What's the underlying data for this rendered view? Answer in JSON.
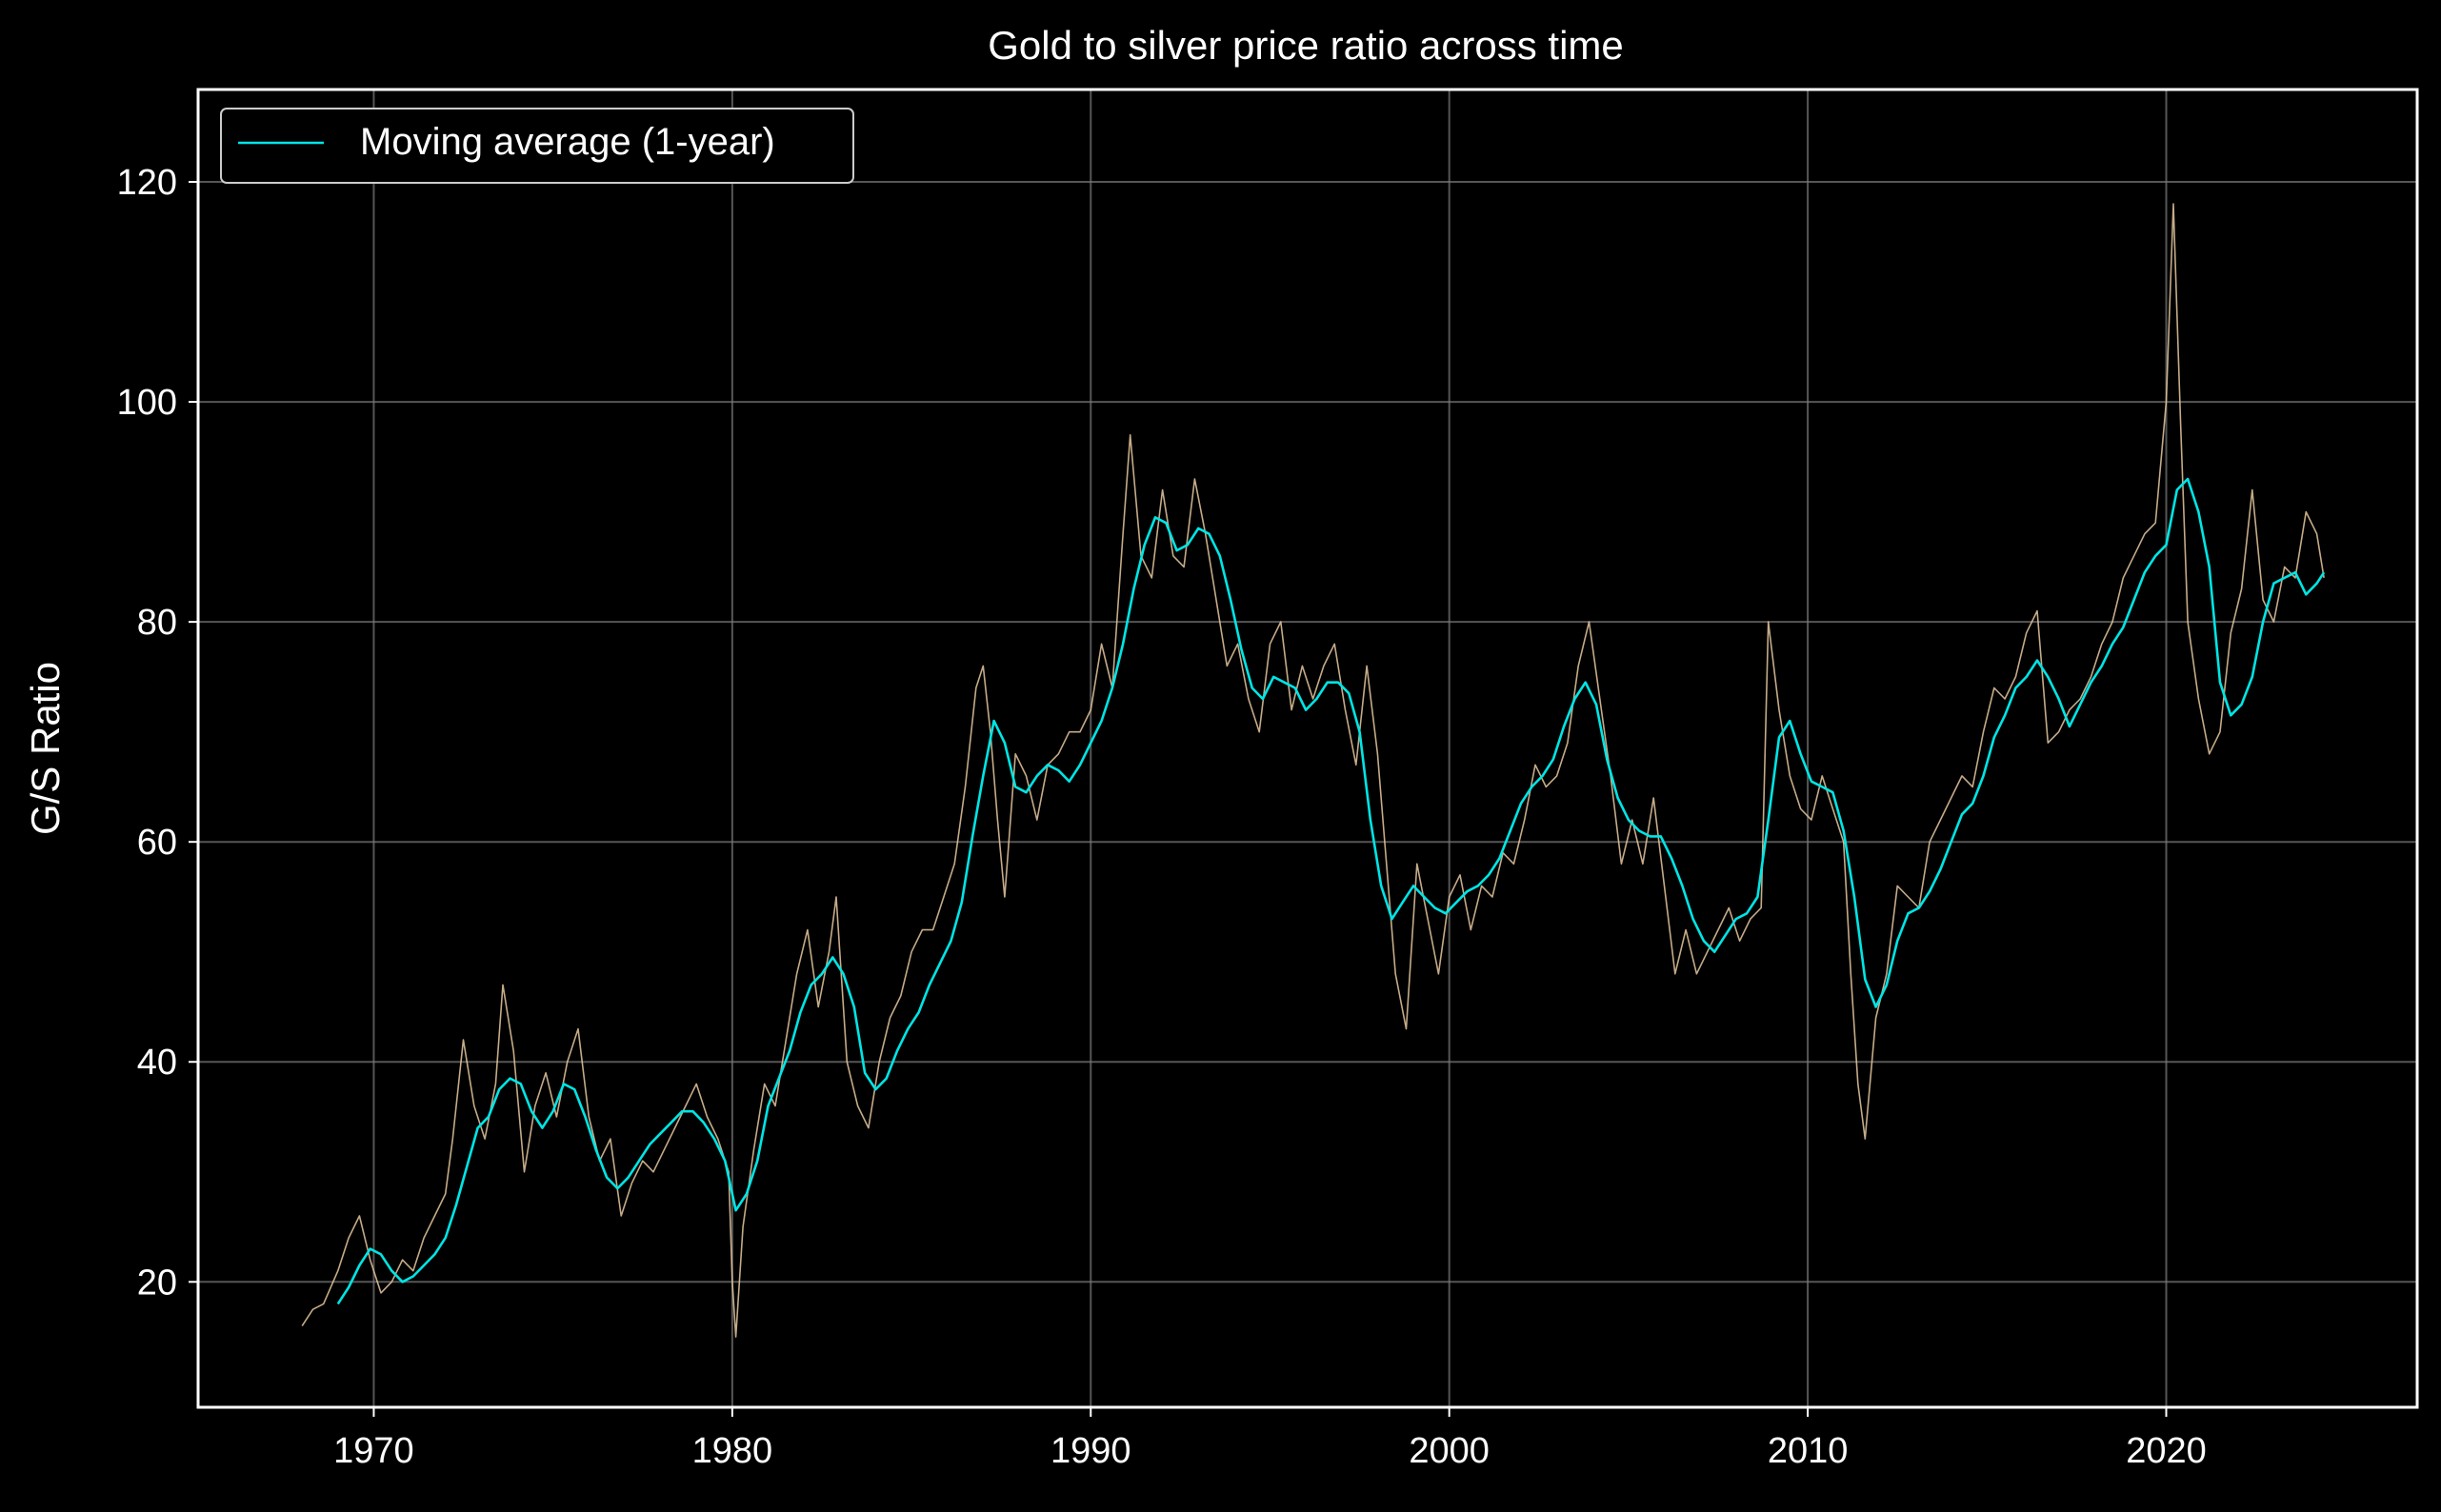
{
  "chart_data": {
    "type": "line",
    "title": "Gold to silver price ratio across time",
    "xlabel": "",
    "ylabel": "G/S Ratio",
    "xlim": [
      1965.1,
      2027.0
    ],
    "ylim": [
      8.6,
      128.4
    ],
    "xticks": [
      1970,
      1980,
      1990,
      2000,
      2010,
      2020
    ],
    "yticks": [
      20,
      40,
      60,
      80,
      100,
      120
    ],
    "grid": true,
    "legend": {
      "position": "top-left",
      "entries": [
        "Moving average (1-year)"
      ]
    },
    "colors": {
      "background": "#000000",
      "raw_series": "#e8c9a0",
      "moving_average": "#00e5e5",
      "grid": "#7a7a7a",
      "text": "#ffffff"
    },
    "series": [
      {
        "role": "daily ratio",
        "style": "thin",
        "x": [
          1968.0,
          1968.3,
          1968.6,
          1969.0,
          1969.3,
          1969.6,
          1969.9,
          1970.2,
          1970.5,
          1970.8,
          1971.1,
          1971.4,
          1971.7,
          1972.0,
          1972.2,
          1972.5,
          1972.8,
          1973.1,
          1973.4,
          1973.6,
          1973.9,
          1974.2,
          1974.5,
          1974.8,
          1975.1,
          1975.4,
          1975.7,
          1976.0,
          1976.3,
          1976.6,
          1976.9,
          1977.2,
          1977.5,
          1977.8,
          1978.1,
          1978.4,
          1978.7,
          1979.0,
          1979.3,
          1979.6,
          1979.9,
          1980.0,
          1980.1,
          1980.3,
          1980.6,
          1980.9,
          1981.2,
          1981.5,
          1981.8,
          1982.1,
          1982.4,
          1982.7,
          1982.9,
          1983.2,
          1983.5,
          1983.8,
          1984.1,
          1984.4,
          1984.7,
          1985.0,
          1985.3,
          1985.6,
          1985.9,
          1986.2,
          1986.5,
          1986.8,
          1987.0,
          1987.2,
          1987.4,
          1987.6,
          1987.9,
          1988.2,
          1988.5,
          1988.8,
          1989.1,
          1989.4,
          1989.7,
          1990.0,
          1990.3,
          1990.6,
          1990.9,
          1991.1,
          1991.4,
          1991.7,
          1992.0,
          1992.3,
          1992.6,
          1992.9,
          1993.2,
          1993.5,
          1993.8,
          1994.1,
          1994.4,
          1994.7,
          1995.0,
          1995.3,
          1995.6,
          1995.9,
          1996.2,
          1996.5,
          1996.8,
          1997.1,
          1997.4,
          1997.7,
          1998.0,
          1998.2,
          1998.5,
          1998.8,
          1999.1,
          1999.4,
          1999.7,
          2000.0,
          2000.3,
          2000.6,
          2000.9,
          2001.2,
          2001.5,
          2001.8,
          2002.1,
          2002.4,
          2002.7,
          2003.0,
          2003.3,
          2003.6,
          2003.9,
          2004.2,
          2004.5,
          2004.8,
          2005.1,
          2005.4,
          2005.7,
          2006.0,
          2006.3,
          2006.6,
          2006.9,
          2007.2,
          2007.5,
          2007.8,
          2008.1,
          2008.4,
          2008.7,
          2008.9,
          2009.2,
          2009.5,
          2009.8,
          2010.1,
          2010.4,
          2010.7,
          2011.0,
          2011.2,
          2011.4,
          2011.6,
          2011.9,
          2012.2,
          2012.5,
          2012.8,
          2013.1,
          2013.4,
          2013.7,
          2014.0,
          2014.3,
          2014.6,
          2014.9,
          2015.2,
          2015.5,
          2015.8,
          2016.1,
          2016.4,
          2016.7,
          2017.0,
          2017.3,
          2017.6,
          2017.9,
          2018.2,
          2018.5,
          2018.8,
          2019.1,
          2019.4,
          2019.7,
          2020.0,
          2020.2,
          2020.4,
          2020.6,
          2020.9,
          2021.2,
          2021.5,
          2021.8,
          2022.1,
          2022.4,
          2022.7,
          2023.0,
          2023.3,
          2023.6,
          2023.9,
          2024.2,
          2024.4
        ],
        "y": [
          16.0,
          17.5,
          18.0,
          21.0,
          24.0,
          26.0,
          22.0,
          19.0,
          20.0,
          22.0,
          21.0,
          24.0,
          26.0,
          28.0,
          33.0,
          42.0,
          36.0,
          33.0,
          38.0,
          47.0,
          41.0,
          30.0,
          36.0,
          39.0,
          35.0,
          40.0,
          43.0,
          35.0,
          31.0,
          33.0,
          26.0,
          29.0,
          31.0,
          30.0,
          32.0,
          34.0,
          36.0,
          38.0,
          35.0,
          33.0,
          30.0,
          20.0,
          15.0,
          25.0,
          32.0,
          38.0,
          36.0,
          42.0,
          48.0,
          52.0,
          45.0,
          50.0,
          55.0,
          40.0,
          36.0,
          34.0,
          40.0,
          44.0,
          46.0,
          50.0,
          52.0,
          52.0,
          55.0,
          58.0,
          65.0,
          74.0,
          76.0,
          70.0,
          62.0,
          55.0,
          68.0,
          66.0,
          62.0,
          67.0,
          68.0,
          70.0,
          70.0,
          72.0,
          78.0,
          74.0,
          88.0,
          97.0,
          86.0,
          84.0,
          92.0,
          86.0,
          85.0,
          93.0,
          88.0,
          82.0,
          76.0,
          78.0,
          73.0,
          70.0,
          78.0,
          80.0,
          72.0,
          76.0,
          73.0,
          76.0,
          78.0,
          72.0,
          67.0,
          76.0,
          68.0,
          60.0,
          48.0,
          43.0,
          58.0,
          53.0,
          48.0,
          55.0,
          57.0,
          52.0,
          56.0,
          55.0,
          59.0,
          58.0,
          62.0,
          67.0,
          65.0,
          66.0,
          69.0,
          76.0,
          80.0,
          73.0,
          66.0,
          58.0,
          62.0,
          58.0,
          64.0,
          56.0,
          48.0,
          52.0,
          48.0,
          50.0,
          52.0,
          54.0,
          51.0,
          53.0,
          54.0,
          80.0,
          72.0,
          66.0,
          63.0,
          62.0,
          66.0,
          63.0,
          60.0,
          48.0,
          38.0,
          33.0,
          44.0,
          48.0,
          56.0,
          55.0,
          54.0,
          60.0,
          62.0,
          64.0,
          66.0,
          65.0,
          70.0,
          74.0,
          73.0,
          75.0,
          79.0,
          81.0,
          69.0,
          70.0,
          72.0,
          73.0,
          75.0,
          78.0,
          80.0,
          84.0,
          86.0,
          88.0,
          89.0,
          100.0,
          118.0,
          98.0,
          80.0,
          73.0,
          68.0,
          70.0,
          79.0,
          83.0,
          92.0,
          82.0,
          80.0,
          85.0,
          84.0,
          90.0,
          88.0,
          84.0
        ]
      },
      {
        "name": "Moving average (1-year)",
        "x": [
          1969.0,
          1969.3,
          1969.6,
          1969.9,
          1970.2,
          1970.5,
          1970.8,
          1971.1,
          1971.4,
          1971.7,
          1972.0,
          1972.3,
          1972.6,
          1972.9,
          1973.2,
          1973.5,
          1973.8,
          1974.1,
          1974.4,
          1974.7,
          1975.0,
          1975.3,
          1975.6,
          1975.9,
          1976.2,
          1976.5,
          1976.8,
          1977.1,
          1977.4,
          1977.7,
          1978.0,
          1978.3,
          1978.6,
          1978.9,
          1979.2,
          1979.5,
          1979.8,
          1980.1,
          1980.4,
          1980.7,
          1981.0,
          1981.3,
          1981.6,
          1981.9,
          1982.2,
          1982.5,
          1982.8,
          1983.1,
          1983.4,
          1983.7,
          1984.0,
          1984.3,
          1984.6,
          1984.9,
          1985.2,
          1985.5,
          1985.8,
          1986.1,
          1986.4,
          1986.7,
          1987.0,
          1987.3,
          1987.6,
          1987.9,
          1988.2,
          1988.5,
          1988.8,
          1989.1,
          1989.4,
          1989.7,
          1990.0,
          1990.3,
          1990.6,
          1990.9,
          1991.2,
          1991.5,
          1991.8,
          1992.1,
          1992.4,
          1992.7,
          1993.0,
          1993.3,
          1993.6,
          1993.9,
          1994.2,
          1994.5,
          1994.8,
          1995.1,
          1995.4,
          1995.7,
          1996.0,
          1996.3,
          1996.6,
          1996.9,
          1997.2,
          1997.5,
          1997.8,
          1998.1,
          1998.4,
          1998.7,
          1999.0,
          1999.3,
          1999.6,
          1999.9,
          2000.2,
          2000.5,
          2000.8,
          2001.1,
          2001.4,
          2001.7,
          2002.0,
          2002.3,
          2002.6,
          2002.9,
          2003.2,
          2003.5,
          2003.8,
          2004.1,
          2004.4,
          2004.7,
          2005.0,
          2005.3,
          2005.6,
          2005.9,
          2006.2,
          2006.5,
          2006.8,
          2007.1,
          2007.4,
          2007.7,
          2008.0,
          2008.3,
          2008.6,
          2008.9,
          2009.2,
          2009.5,
          2009.8,
          2010.1,
          2010.4,
          2010.7,
          2011.0,
          2011.3,
          2011.6,
          2011.9,
          2012.2,
          2012.5,
          2012.8,
          2013.1,
          2013.4,
          2013.7,
          2014.0,
          2014.3,
          2014.6,
          2014.9,
          2015.2,
          2015.5,
          2015.8,
          2016.1,
          2016.4,
          2016.7,
          2017.0,
          2017.3,
          2017.6,
          2017.9,
          2018.2,
          2018.5,
          2018.8,
          2019.1,
          2019.4,
          2019.7,
          2020.0,
          2020.3,
          2020.6,
          2020.9,
          2021.2,
          2021.5,
          2021.8,
          2022.1,
          2022.4,
          2022.7,
          2023.0,
          2023.3,
          2023.6,
          2023.9,
          2024.2,
          2024.4
        ],
        "y": [
          18.0,
          19.5,
          21.5,
          23.0,
          22.5,
          21.0,
          20.0,
          20.5,
          21.5,
          22.5,
          24.0,
          27.0,
          30.5,
          34.0,
          35.0,
          37.5,
          38.5,
          38.0,
          35.5,
          34.0,
          35.5,
          38.0,
          37.5,
          35.0,
          32.0,
          29.5,
          28.5,
          29.5,
          31.0,
          32.5,
          33.5,
          34.5,
          35.5,
          35.5,
          34.5,
          33.0,
          31.0,
          26.5,
          28.0,
          31.0,
          36.0,
          38.5,
          41.0,
          44.5,
          47.0,
          48.0,
          49.5,
          48.0,
          45.0,
          39.0,
          37.5,
          38.5,
          41.0,
          43.0,
          44.5,
          47.0,
          49.0,
          51.0,
          54.5,
          60.5,
          66.0,
          71.0,
          69.0,
          65.0,
          64.5,
          66.0,
          67.0,
          66.5,
          65.5,
          67.0,
          69.0,
          71.0,
          74.0,
          78.0,
          83.0,
          87.0,
          89.5,
          89.0,
          86.5,
          87.0,
          88.5,
          88.0,
          86.0,
          82.0,
          77.5,
          74.0,
          73.0,
          75.0,
          74.5,
          74.0,
          72.0,
          73.0,
          74.5,
          74.5,
          73.5,
          70.0,
          62.0,
          56.0,
          53.0,
          54.5,
          56.0,
          55.0,
          54.0,
          53.5,
          54.5,
          55.5,
          56.0,
          57.0,
          58.5,
          61.0,
          63.5,
          65.0,
          66.0,
          67.5,
          70.5,
          73.0,
          74.5,
          72.5,
          67.5,
          64.0,
          62.0,
          61.0,
          60.5,
          60.5,
          58.5,
          56.0,
          53.0,
          51.0,
          50.0,
          51.5,
          53.0,
          53.5,
          55.0,
          62.0,
          69.5,
          71.0,
          68.0,
          65.5,
          65.0,
          64.5,
          61.0,
          55.0,
          47.5,
          45.0,
          47.0,
          51.0,
          53.5,
          54.0,
          55.5,
          57.5,
          60.0,
          62.5,
          63.5,
          66.0,
          69.5,
          71.5,
          74.0,
          75.0,
          76.5,
          75.0,
          73.0,
          70.5,
          72.5,
          74.5,
          76.0,
          78.0,
          79.5,
          82.0,
          84.5,
          86.0,
          87.0,
          92.0,
          93.0,
          90.0,
          85.0,
          74.5,
          71.5,
          72.5,
          75.0,
          80.0,
          83.5,
          84.0,
          84.5,
          82.5,
          83.5,
          84.5
        ]
      }
    ]
  }
}
